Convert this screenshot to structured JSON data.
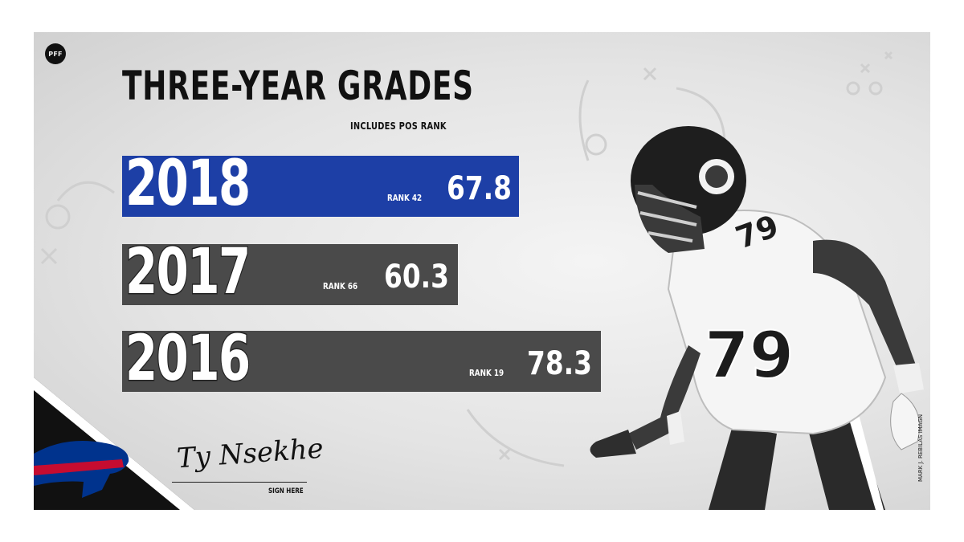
{
  "brand": {
    "logo_text": "PFF"
  },
  "title": "THREE-YEAR GRADES",
  "subtitle": "INCLUDES POS RANK",
  "colors": {
    "highlight": "#1d3fa6",
    "bar_gray": "#4a4a4a",
    "bills_blue": "#00338d",
    "bills_red": "#c60c30"
  },
  "grades": [
    {
      "year": "2018",
      "rank_label": "RANK 42",
      "grade": "67.8",
      "value": 67.8,
      "highlight": true
    },
    {
      "year": "2017",
      "rank_label": "RANK 66",
      "grade": "60.3",
      "value": 60.3,
      "highlight": false
    },
    {
      "year": "2016",
      "rank_label": "RANK 19",
      "grade": "78.3",
      "value": 78.3,
      "highlight": false
    }
  ],
  "player": {
    "signature": "Ty Nsekhe",
    "jersey_number": "79"
  },
  "sign_here": "SIGN HERE",
  "photo_credit": "MARK J. REBILAS IMAGN",
  "team_logo": "bills-buffalo-icon"
}
